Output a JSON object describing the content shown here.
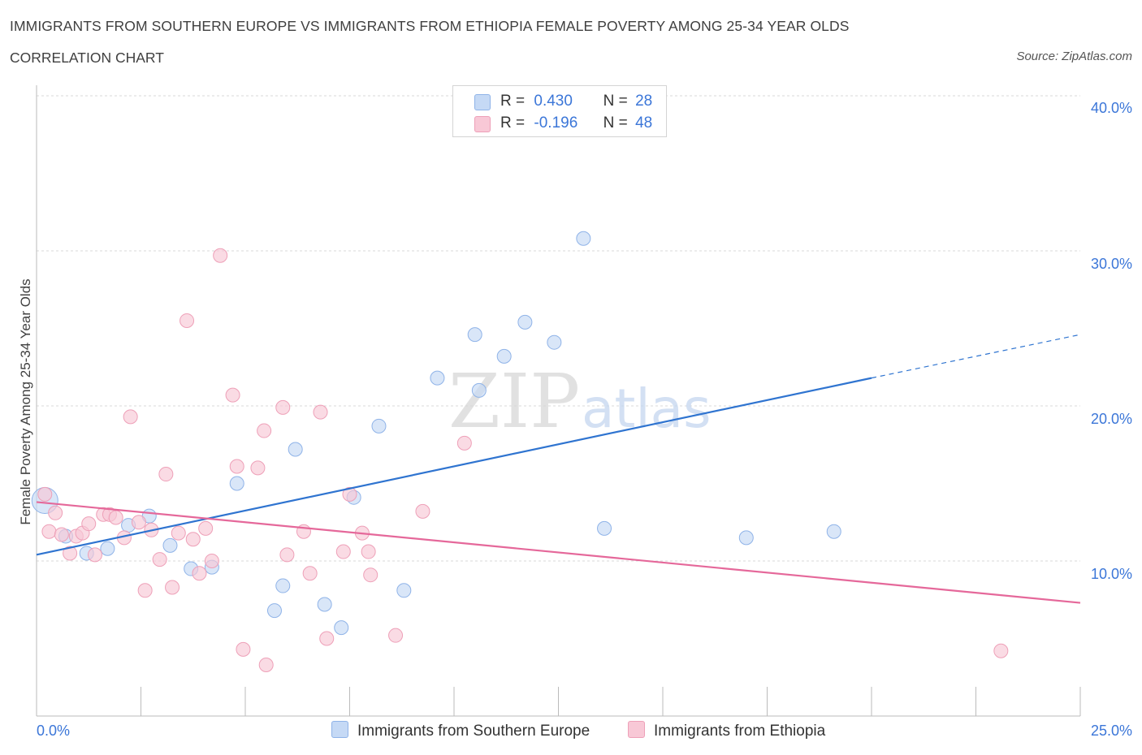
{
  "title": "IMMIGRANTS FROM SOUTHERN EUROPE VS IMMIGRANTS FROM ETHIOPIA FEMALE POVERTY AMONG 25-34 YEAR OLDS",
  "subtitle": "CORRELATION CHART",
  "source": "Source: ZipAtlas.com",
  "watermark": {
    "zip": "ZIP",
    "atlas": "atlas"
  },
  "legend_top": {
    "rows": [
      {
        "r_label": "R =",
        "r_value": "0.430",
        "n_label": "N =",
        "n_value": "28"
      },
      {
        "r_label": "R =",
        "r_value": "-0.196",
        "n_label": "N =",
        "n_value": "48"
      }
    ]
  },
  "colors": {
    "blue_fill": "#c5d9f5",
    "blue_stroke": "#8fb3e8",
    "blue_line": "#2f74d0",
    "pink_fill": "#f8c8d6",
    "pink_stroke": "#eea0b8",
    "pink_line": "#e5689a",
    "axis_label": "#3b76d8",
    "grid": "#d9d9d9"
  },
  "chart_data": {
    "type": "scatter",
    "title": "IMMIGRANTS FROM SOUTHERN EUROPE VS IMMIGRANTS FROM ETHIOPIA FEMALE POVERTY AMONG 25-34 YEAR OLDS",
    "xlabel": "",
    "ylabel": "Female Poverty Among 25-34 Year Olds",
    "xlim": [
      0,
      25
    ],
    "ylim": [
      0,
      40
    ],
    "x_tick_labels": [
      "0.0%",
      "25.0%"
    ],
    "y_ticks": [
      10,
      20,
      30,
      40
    ],
    "y_tick_labels": [
      "10.0%",
      "20.0%",
      "30.0%",
      "40.0%"
    ],
    "grid": true,
    "series": [
      {
        "name": "Immigrants from Southern Europe",
        "color": "blue",
        "r": 0.43,
        "n": 28,
        "trend": {
          "x0": 0,
          "y0": 10.4,
          "x1": 20,
          "y1": 21.8,
          "dash_to_x": 25,
          "dash_to_y": 24.6
        },
        "points": [
          {
            "x": 0.2,
            "y": 13.9,
            "big": true
          },
          {
            "x": 0.7,
            "y": 11.6
          },
          {
            "x": 1.2,
            "y": 10.5
          },
          {
            "x": 1.7,
            "y": 10.8
          },
          {
            "x": 2.2,
            "y": 12.3
          },
          {
            "x": 2.7,
            "y": 12.9
          },
          {
            "x": 3.2,
            "y": 11.0
          },
          {
            "x": 3.7,
            "y": 9.5
          },
          {
            "x": 4.2,
            "y": 9.6
          },
          {
            "x": 4.8,
            "y": 15.0
          },
          {
            "x": 5.7,
            "y": 6.8
          },
          {
            "x": 5.9,
            "y": 8.4
          },
          {
            "x": 6.2,
            "y": 17.2
          },
          {
            "x": 6.9,
            "y": 7.2
          },
          {
            "x": 7.3,
            "y": 5.7
          },
          {
            "x": 7.6,
            "y": 14.1
          },
          {
            "x": 8.2,
            "y": 18.7
          },
          {
            "x": 8.8,
            "y": 8.1
          },
          {
            "x": 9.6,
            "y": 21.8
          },
          {
            "x": 10.5,
            "y": 24.6
          },
          {
            "x": 10.6,
            "y": 21.0
          },
          {
            "x": 11.2,
            "y": 23.2
          },
          {
            "x": 11.7,
            "y": 25.4
          },
          {
            "x": 12.4,
            "y": 24.1
          },
          {
            "x": 13.1,
            "y": 30.8
          },
          {
            "x": 13.6,
            "y": 12.1
          },
          {
            "x": 17.0,
            "y": 11.5
          },
          {
            "x": 19.1,
            "y": 11.9
          }
        ]
      },
      {
        "name": "Immigrants from Ethiopia",
        "color": "pink",
        "r": -0.196,
        "n": 48,
        "trend": {
          "x0": 0,
          "y0": 13.8,
          "x1": 25,
          "y1": 7.3
        },
        "points": [
          {
            "x": 0.2,
            "y": 14.3
          },
          {
            "x": 0.3,
            "y": 11.9
          },
          {
            "x": 0.45,
            "y": 13.1
          },
          {
            "x": 0.6,
            "y": 11.7
          },
          {
            "x": 0.8,
            "y": 10.5
          },
          {
            "x": 0.95,
            "y": 11.6
          },
          {
            "x": 1.1,
            "y": 11.8
          },
          {
            "x": 1.25,
            "y": 12.4
          },
          {
            "x": 1.4,
            "y": 10.4
          },
          {
            "x": 1.6,
            "y": 13.0
          },
          {
            "x": 1.75,
            "y": 13.0
          },
          {
            "x": 1.9,
            "y": 12.8
          },
          {
            "x": 2.1,
            "y": 11.5
          },
          {
            "x": 2.25,
            "y": 19.3
          },
          {
            "x": 2.45,
            "y": 12.5
          },
          {
            "x": 2.6,
            "y": 8.1
          },
          {
            "x": 2.75,
            "y": 12.0
          },
          {
            "x": 2.95,
            "y": 10.1
          },
          {
            "x": 3.1,
            "y": 15.6
          },
          {
            "x": 3.25,
            "y": 8.3
          },
          {
            "x": 3.4,
            "y": 11.8
          },
          {
            "x": 3.6,
            "y": 25.5
          },
          {
            "x": 3.75,
            "y": 11.4
          },
          {
            "x": 3.9,
            "y": 9.2
          },
          {
            "x": 4.05,
            "y": 12.1
          },
          {
            "x": 4.2,
            "y": 10.0
          },
          {
            "x": 4.4,
            "y": 29.7
          },
          {
            "x": 4.7,
            "y": 20.7
          },
          {
            "x": 4.8,
            "y": 16.1
          },
          {
            "x": 4.95,
            "y": 4.3
          },
          {
            "x": 5.3,
            "y": 16.0
          },
          {
            "x": 5.45,
            "y": 18.4
          },
          {
            "x": 5.5,
            "y": 3.3
          },
          {
            "x": 5.9,
            "y": 19.9
          },
          {
            "x": 6.0,
            "y": 10.4
          },
          {
            "x": 6.4,
            "y": 11.9
          },
          {
            "x": 6.55,
            "y": 9.2
          },
          {
            "x": 6.8,
            "y": 19.6
          },
          {
            "x": 6.95,
            "y": 5.0
          },
          {
            "x": 7.35,
            "y": 10.6
          },
          {
            "x": 7.5,
            "y": 14.3
          },
          {
            "x": 7.8,
            "y": 11.8
          },
          {
            "x": 7.95,
            "y": 10.6
          },
          {
            "x": 8.0,
            "y": 9.1
          },
          {
            "x": 8.6,
            "y": 5.2
          },
          {
            "x": 9.25,
            "y": 13.2
          },
          {
            "x": 10.25,
            "y": 17.6
          },
          {
            "x": 23.1,
            "y": 4.2
          }
        ]
      }
    ]
  },
  "bottom_legend": [
    {
      "label": "Immigrants from Southern Europe"
    },
    {
      "label": "Immigrants from Ethiopia"
    }
  ]
}
